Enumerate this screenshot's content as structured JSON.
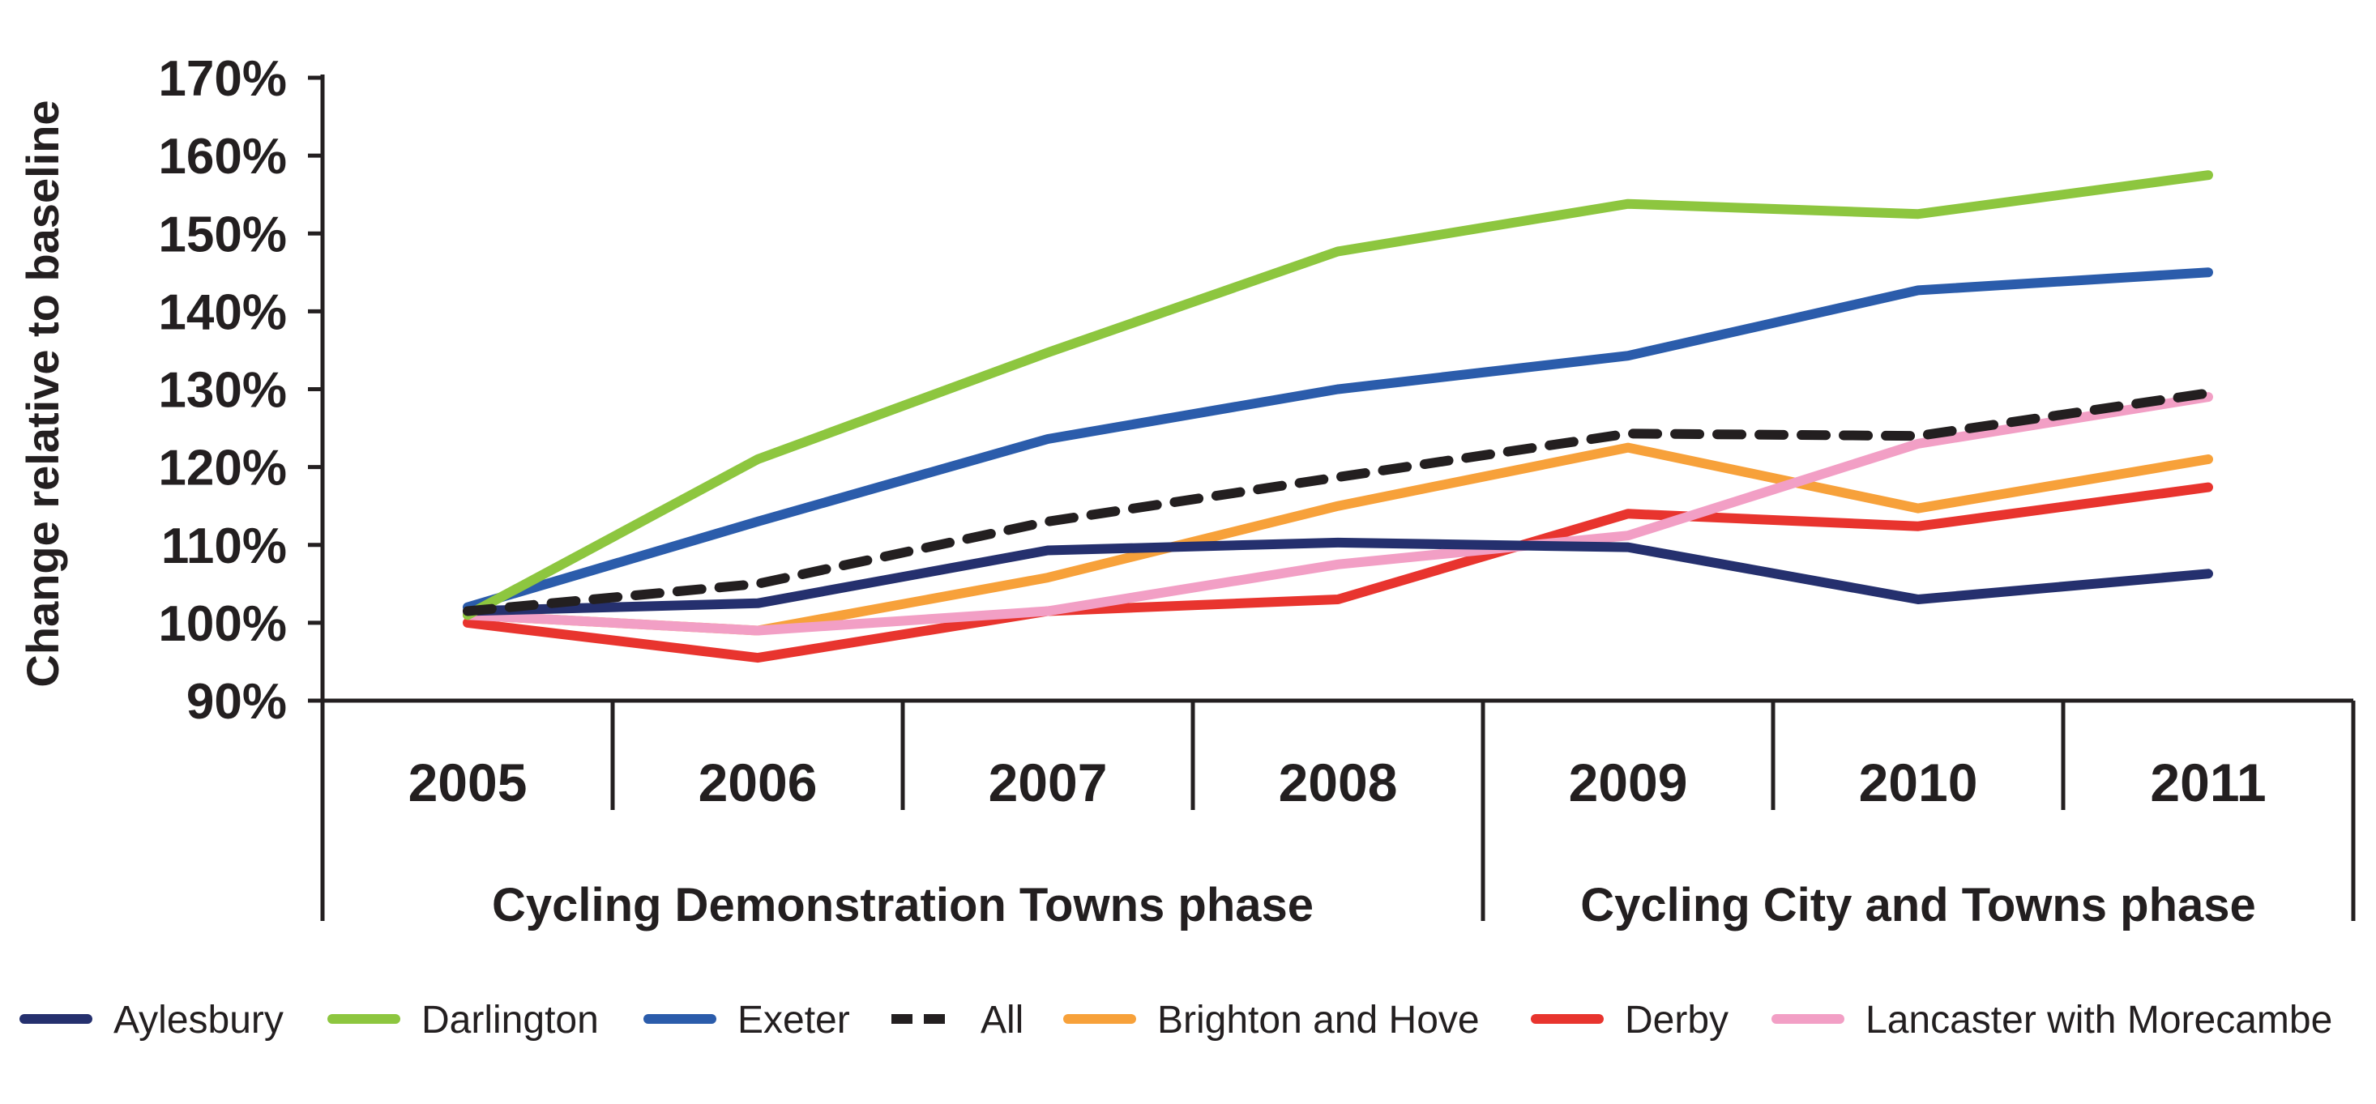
{
  "chart_data": {
    "type": "line",
    "title": "",
    "ylabel": "Change relative to baseline",
    "xlabel": "",
    "x": [
      "2005",
      "2006",
      "2007",
      "2008",
      "2009",
      "2010",
      "2011"
    ],
    "ylim": [
      90,
      170
    ],
    "yticks": [
      "90%",
      "100%",
      "110%",
      "120%",
      "130%",
      "140%",
      "150%",
      "160%",
      "170%"
    ],
    "ytick_values": [
      90,
      100,
      110,
      120,
      130,
      140,
      150,
      160,
      170
    ],
    "phases": [
      {
        "label": "Cycling Demonstration Towns phase",
        "years": [
          "2005",
          "2008"
        ]
      },
      {
        "label": "Cycling City and Towns phase",
        "years": [
          "2009",
          "2011"
        ]
      }
    ],
    "legend_position": "bottom",
    "grid": false,
    "series": [
      {
        "name": "Aylesbury",
        "color": "#25306e",
        "dashed": false,
        "values": [
          101.5,
          102.5,
          109.3,
          110.3,
          109.7,
          103,
          106.3
        ]
      },
      {
        "name": "Darlington",
        "color": "#8dc63f",
        "dashed": false,
        "values": [
          101,
          121,
          134.7,
          147.7,
          153.8,
          152.5,
          157.5
        ]
      },
      {
        "name": "Exeter",
        "color": "#2b5cab",
        "dashed": false,
        "values": [
          102,
          113,
          123.6,
          130,
          134.3,
          142.7,
          145
        ]
      },
      {
        "name": "All",
        "color": "#231f20",
        "dashed": true,
        "values": [
          101.5,
          105,
          113,
          118.7,
          124.3,
          124,
          129.5
        ]
      },
      {
        "name": "Brighton and Hove",
        "color": "#f7a13a",
        "dashed": false,
        "values": [
          101,
          99,
          105.8,
          115,
          122.5,
          114.7,
          121
        ]
      },
      {
        "name": "Derby",
        "color": "#e8342e",
        "dashed": false,
        "values": [
          100,
          95.5,
          101.5,
          103,
          114,
          112.4,
          117.4
        ]
      },
      {
        "name": "Lancaster with Morecambe",
        "color": "#f29fc5",
        "dashed": false,
        "values": [
          101,
          99,
          101.5,
          107.5,
          111.2,
          123,
          129
        ]
      }
    ]
  }
}
